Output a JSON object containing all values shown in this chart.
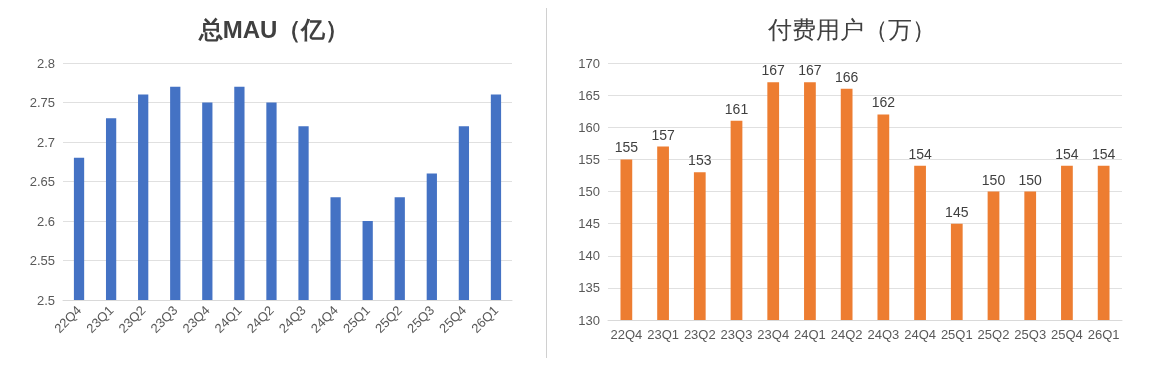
{
  "chart_data": [
    {
      "type": "bar",
      "title": "总MAU（亿）",
      "categories": [
        "22Q4",
        "23Q1",
        "23Q2",
        "23Q3",
        "23Q4",
        "24Q1",
        "24Q2",
        "24Q3",
        "24Q4",
        "25Q1",
        "25Q2",
        "25Q3",
        "25Q4",
        "26Q1"
      ],
      "values": [
        2.68,
        2.73,
        2.76,
        2.77,
        2.75,
        2.77,
        2.75,
        2.72,
        2.63,
        2.6,
        2.63,
        2.66,
        2.72,
        2.76
      ],
      "color": "#4472c4",
      "ylim": [
        2.5,
        2.8
      ],
      "yticks": [
        2.5,
        2.55,
        2.6,
        2.65,
        2.7,
        2.75,
        2.8
      ],
      "grid": "y"
    },
    {
      "type": "bar",
      "title": "付费用户（万）",
      "categories": [
        "22Q4",
        "23Q1",
        "23Q2",
        "23Q3",
        "23Q4",
        "24Q1",
        "24Q2",
        "24Q3",
        "24Q4",
        "25Q1",
        "25Q2",
        "25Q3",
        "25Q4",
        "26Q1"
      ],
      "values": [
        155,
        157,
        153,
        161,
        167,
        167,
        166,
        162,
        154,
        145,
        150,
        150,
        154,
        154
      ],
      "color": "#ed7d31",
      "ylim": [
        130,
        170
      ],
      "yticks": [
        130,
        135,
        140,
        145,
        150,
        155,
        160,
        165,
        170
      ],
      "grid": "y",
      "data_labels": true
    }
  ]
}
